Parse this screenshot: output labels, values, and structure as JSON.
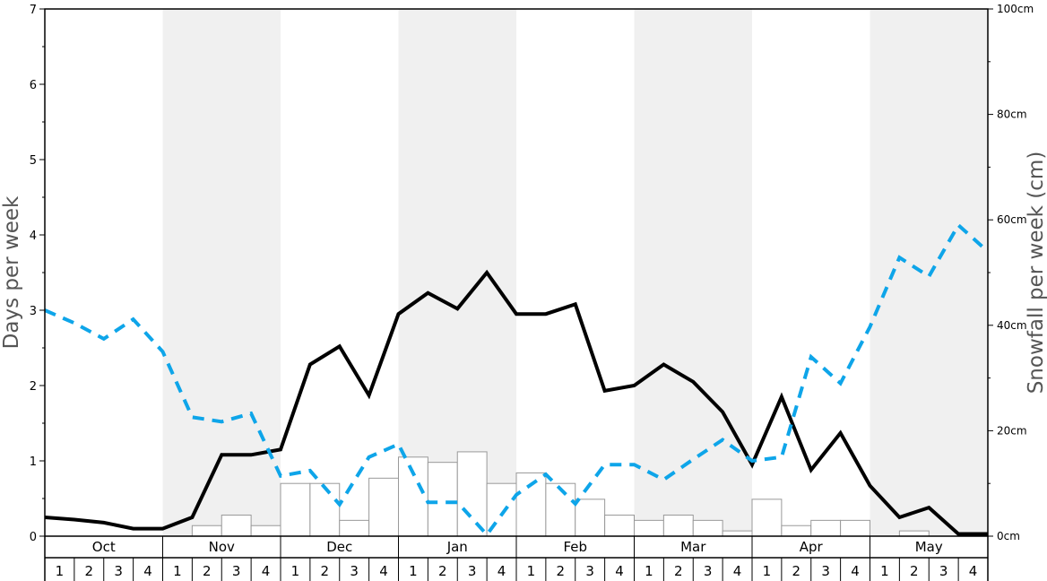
{
  "chart_data": {
    "type": "bar+line",
    "ylabel_left": "Days per week",
    "ylabel_right": "Snowfall per week (cm)",
    "ylim_left": [
      0,
      7
    ],
    "yticks_left": [
      "0",
      "1",
      "2",
      "3",
      "4",
      "5",
      "6",
      "7"
    ],
    "ylim_right": [
      0,
      100
    ],
    "yticks_right": [
      "0cm",
      "20cm",
      "40cm",
      "60cm",
      "80cm",
      "100cm"
    ],
    "months": [
      "Oct",
      "Nov",
      "Dec",
      "Jan",
      "Feb",
      "Mar",
      "Apr",
      "May"
    ],
    "weeks": [
      "1",
      "2",
      "3",
      "4"
    ],
    "shaded_months": [
      "Nov",
      "Jan",
      "Mar",
      "May"
    ],
    "series": [
      {
        "kind": "bar",
        "axis": "right",
        "unit": "cm",
        "values": [
          0,
          0,
          0,
          0,
          0,
          2,
          4,
          2,
          10,
          10,
          3,
          11,
          15,
          14,
          16,
          10,
          12,
          10,
          7,
          4,
          3,
          4,
          3,
          1,
          7,
          2,
          3,
          3,
          0,
          1,
          0,
          0
        ]
      },
      {
        "kind": "line",
        "style": "solid",
        "color": "#000000",
        "axis": "left",
        "values": [
          0.25,
          0.22,
          0.18,
          0.1,
          0.1,
          0.25,
          1.08,
          1.08,
          1.15,
          2.28,
          2.52,
          1.87,
          2.95,
          3.23,
          3.02,
          3.5,
          2.95,
          2.95,
          3.08,
          1.93,
          2.0,
          2.28,
          2.05,
          1.65,
          0.95,
          1.85,
          0.88,
          1.37,
          0.67,
          0.25,
          0.38,
          0.03,
          0.03
        ]
      },
      {
        "kind": "line",
        "style": "dashed",
        "color": "#0ea5e9",
        "axis": "left",
        "values": [
          3.0,
          2.83,
          2.62,
          2.88,
          2.45,
          1.58,
          1.52,
          1.63,
          0.8,
          0.87,
          0.42,
          1.05,
          1.22,
          0.45,
          0.45,
          0.02,
          0.55,
          0.82,
          0.43,
          0.95,
          0.95,
          0.75,
          1.02,
          1.28,
          1.0,
          1.05,
          2.38,
          2.03,
          2.78,
          3.7,
          3.45,
          4.13,
          3.78
        ]
      }
    ]
  }
}
